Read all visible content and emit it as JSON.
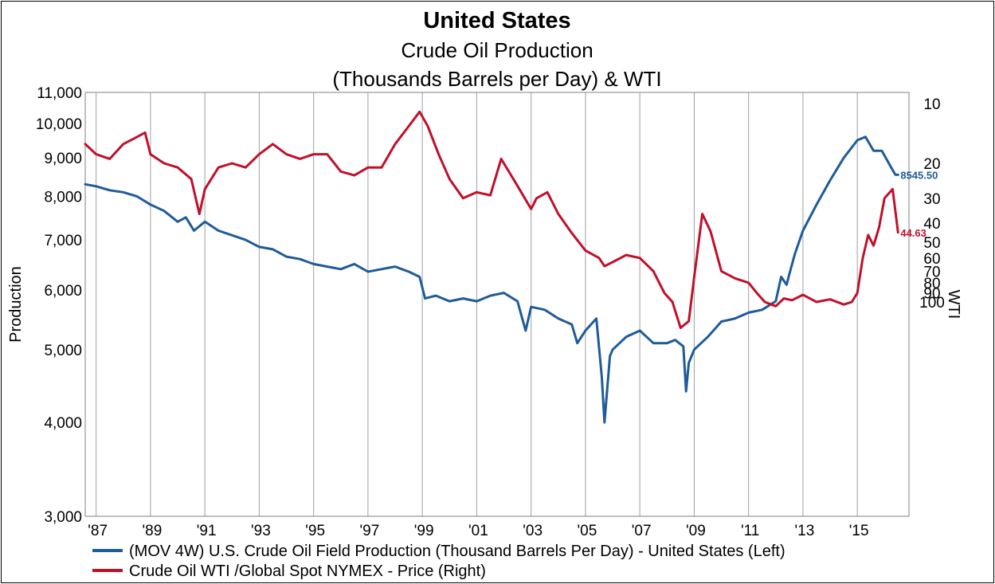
{
  "chart_data": {
    "type": "line",
    "title": "United States",
    "subtitle_lines": [
      "Crude Oil Production",
      "(Thousands Barrels per Day) & WTI"
    ],
    "ylabel_left": "Production",
    "ylabel_right": "WTI",
    "left_axis": {
      "scale": "log",
      "range": [
        3000,
        11000
      ],
      "ticks": [
        3000,
        4000,
        5000,
        6000,
        7000,
        8000,
        9000,
        10000,
        11000
      ],
      "tick_labels": [
        "3,000",
        "4,000",
        "5,000",
        "6,000",
        "7,000",
        "8,000",
        "9,000",
        "10,000",
        "11,000"
      ]
    },
    "right_axis": {
      "scale": "log",
      "inverted": true,
      "ticks": [
        10,
        20,
        30,
        40,
        50,
        60,
        70,
        80,
        90,
        100
      ],
      "tick_labels": [
        "10",
        "20",
        "30",
        "40",
        "50",
        "60",
        "70",
        "80",
        "90",
        "100"
      ]
    },
    "x_axis": {
      "range": [
        1986.6,
        2016.9
      ],
      "ticks": [
        1987,
        1989,
        1991,
        1993,
        1995,
        1997,
        1999,
        2001,
        2003,
        2005,
        2007,
        2009,
        2011,
        2013,
        2015
      ],
      "tick_labels": [
        "'87",
        "'89",
        "'91",
        "'93",
        "'95",
        "'97",
        "'99",
        "'01",
        "'03",
        "'05",
        "'07",
        "'09",
        "'11",
        "'13",
        "'15"
      ]
    },
    "grid": "vertical",
    "legend_position": "bottom",
    "series": [
      {
        "name": "(MOV 4W) U.S. Crude Oil Field Production (Thousand Barrels Per Day) - United States  (Left)",
        "axis": "left",
        "color": "#1f5b99",
        "last_label": "8545.50",
        "x": [
          1986.6,
          1987.0,
          1987.5,
          1988.0,
          1988.5,
          1989.0,
          1989.5,
          1990.0,
          1990.3,
          1990.6,
          1991.0,
          1991.5,
          1992.0,
          1992.5,
          1993.0,
          1993.5,
          1994.0,
          1994.5,
          1995.0,
          1995.5,
          1996.0,
          1996.5,
          1997.0,
          1997.5,
          1998.0,
          1998.5,
          1998.9,
          1999.1,
          1999.5,
          2000.0,
          2000.5,
          2001.0,
          2001.5,
          2002.0,
          2002.5,
          2002.8,
          2003.0,
          2003.5,
          2004.0,
          2004.5,
          2004.7,
          2005.0,
          2005.4,
          2005.6,
          2005.7,
          2005.9,
          2006.0,
          2006.5,
          2007.0,
          2007.5,
          2008.0,
          2008.3,
          2008.6,
          2008.7,
          2008.8,
          2009.0,
          2009.5,
          2010.0,
          2010.5,
          2011.0,
          2011.5,
          2012.0,
          2012.2,
          2012.4,
          2012.5,
          2012.7,
          2013.0,
          2013.5,
          2014.0,
          2014.5,
          2015.0,
          2015.3,
          2015.6,
          2015.9,
          2016.2,
          2016.4,
          2016.5
        ],
        "y": [
          8300,
          8250,
          8150,
          8100,
          8000,
          7800,
          7650,
          7400,
          7500,
          7200,
          7400,
          7200,
          7100,
          7000,
          6850,
          6800,
          6650,
          6600,
          6500,
          6450,
          6400,
          6500,
          6350,
          6400,
          6450,
          6350,
          6250,
          5850,
          5900,
          5800,
          5850,
          5800,
          5900,
          5950,
          5800,
          5300,
          5700,
          5650,
          5500,
          5400,
          5100,
          5300,
          5500,
          4600,
          4000,
          4900,
          5000,
          5200,
          5300,
          5100,
          5100,
          5150,
          5050,
          4400,
          4800,
          5000,
          5200,
          5450,
          5500,
          5600,
          5650,
          5800,
          6250,
          6100,
          6300,
          6700,
          7200,
          7800,
          8400,
          9000,
          9500,
          9600,
          9200,
          9200,
          8800,
          8550,
          8545.5
        ]
      },
      {
        "name": "Crude Oil WTI /Global Spot NYMEX  - Price  (Right)",
        "axis": "right",
        "color": "#c0102a",
        "last_label": "44.63",
        "x": [
          1986.6,
          1987.0,
          1987.5,
          1988.0,
          1988.4,
          1988.8,
          1989.0,
          1989.5,
          1990.0,
          1990.5,
          1990.8,
          1991.0,
          1991.5,
          1992.0,
          1992.5,
          1993.0,
          1993.5,
          1994.0,
          1994.5,
          1995.0,
          1995.5,
          1996.0,
          1996.5,
          1997.0,
          1997.5,
          1998.0,
          1998.5,
          1998.9,
          1999.2,
          1999.6,
          2000.0,
          2000.5,
          2001.0,
          2001.5,
          2001.9,
          2002.5,
          2003.0,
          2003.2,
          2003.6,
          2004.0,
          2004.5,
          2005.0,
          2005.5,
          2005.7,
          2006.0,
          2006.5,
          2007.0,
          2007.5,
          2007.9,
          2008.2,
          2008.5,
          2008.8,
          2009.0,
          2009.3,
          2009.6,
          2010.0,
          2010.5,
          2011.0,
          2011.3,
          2011.6,
          2012.0,
          2012.3,
          2012.6,
          2013.0,
          2013.5,
          2014.0,
          2014.5,
          2014.8,
          2015.0,
          2015.2,
          2015.4,
          2015.6,
          2015.8,
          2016.0,
          2016.3,
          2016.5
        ],
        "y": [
          16,
          18,
          19,
          16,
          15,
          14,
          18,
          20,
          21,
          24,
          36,
          27,
          21,
          20,
          21,
          18,
          16,
          18,
          19,
          18,
          18,
          22,
          23,
          21,
          21,
          16,
          13,
          11,
          13,
          18,
          24,
          30,
          28,
          29,
          19,
          26,
          34,
          30,
          28,
          36,
          45,
          55,
          60,
          66,
          63,
          58,
          60,
          70,
          90,
          100,
          135,
          125,
          75,
          36,
          44,
          70,
          76,
          80,
          90,
          100,
          105,
          96,
          98,
          92,
          100,
          97,
          103,
          100,
          90,
          60,
          46,
          52,
          42,
          30,
          27,
          44.63
        ]
      }
    ]
  }
}
